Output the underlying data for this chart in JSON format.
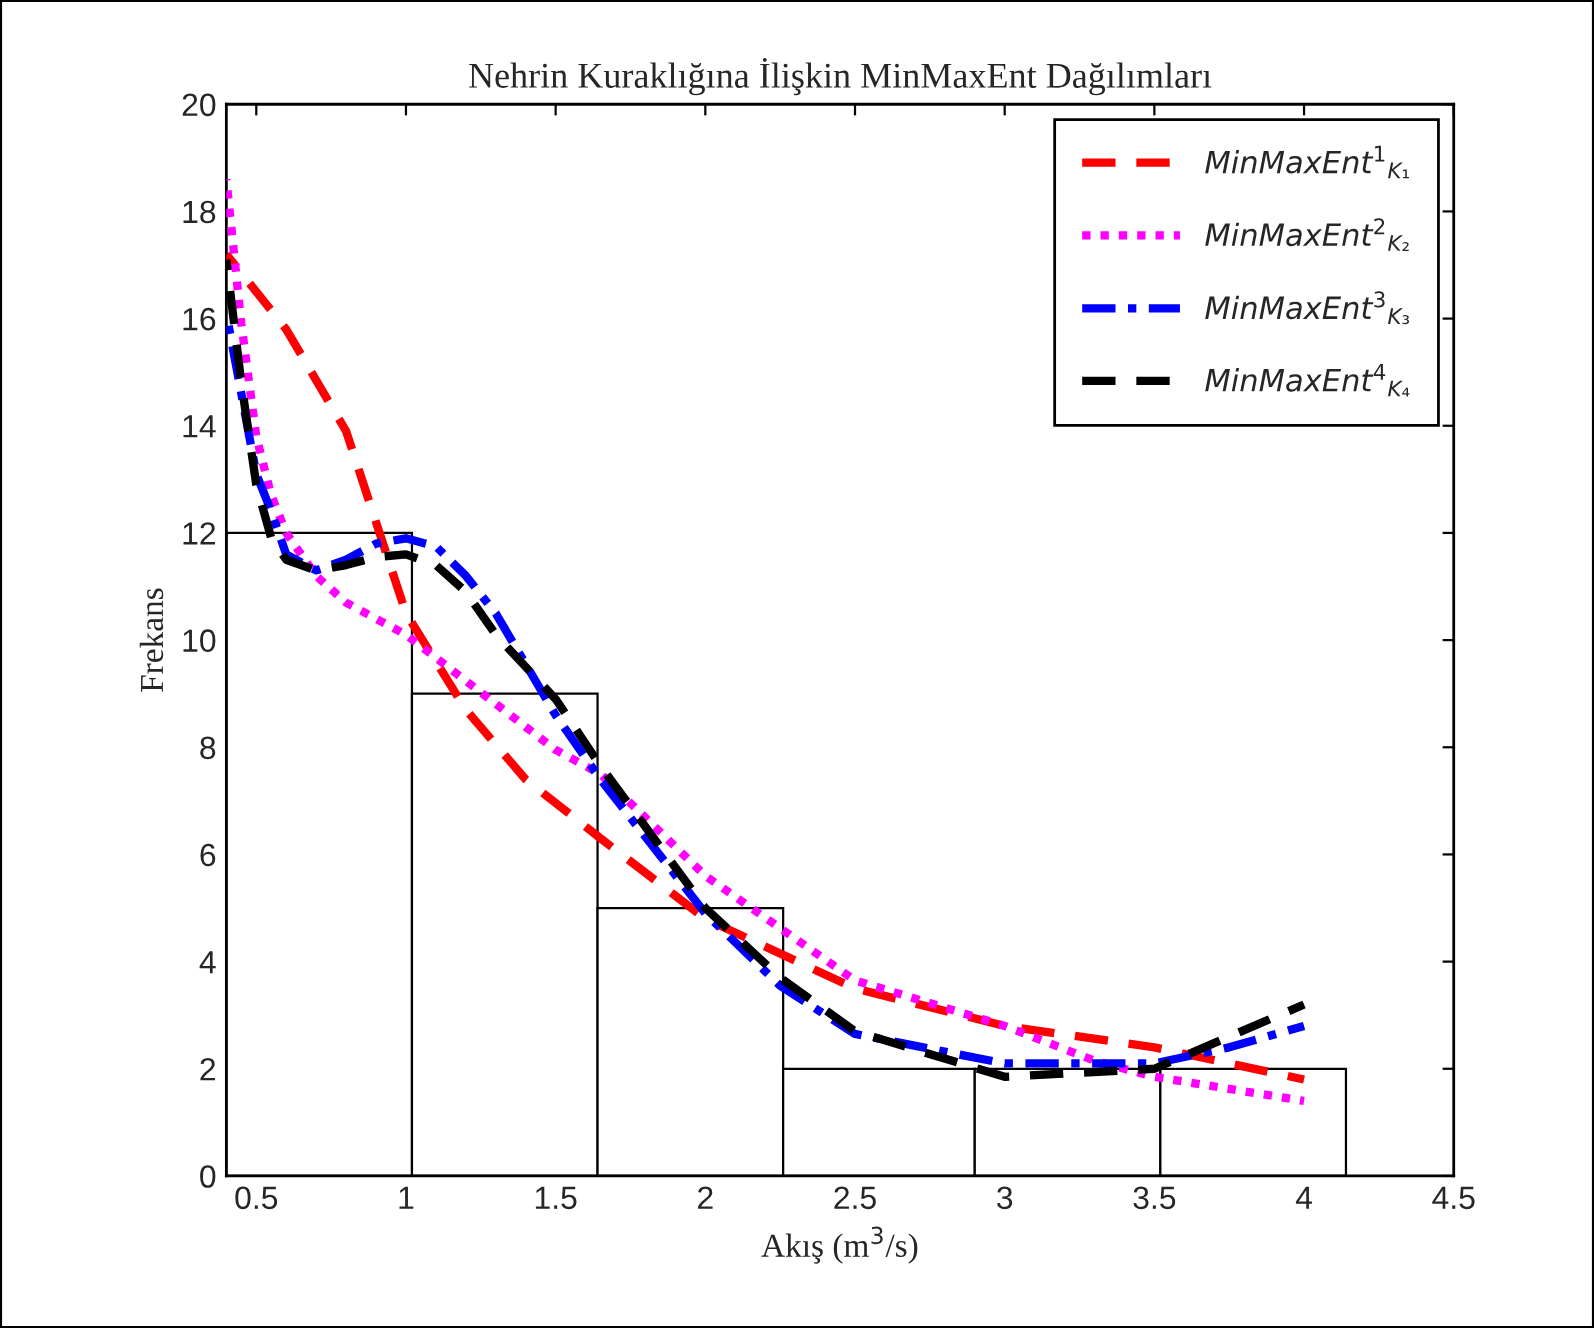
{
  "chart_data": {
    "type": "histogram",
    "title": "Nehrin Kuraklığına İlişkin MinMaxEnt Dağılımları",
    "xlabel": "Akış (m$^{3}$/s)",
    "ylabel": "Frekans",
    "bins": [
      0.4,
      1.02,
      1.64,
      2.26,
      2.9,
      3.52,
      4.14
    ],
    "values": [
      12,
      9,
      5,
      2,
      2,
      2
    ],
    "color": "#ffffff",
    "xlim": [
      0.4,
      4.5
    ],
    "xticks": [
      0.5,
      1,
      1.5,
      2,
      2.5,
      3,
      3.5,
      4,
      4.5
    ],
    "ylim": [
      0,
      20
    ],
    "yticks": [
      0,
      2,
      4,
      6,
      8,
      10,
      12,
      14,
      16,
      18,
      20
    ],
    "grid": false,
    "legend": "top right",
    "series": [
      {
        "name": "MinMaxEnt$^{1}$$_{K₁}$",
        "type": "line",
        "line_style": "dashed",
        "color": "#ff0000",
        "x": [
          0.4,
          0.6,
          0.8,
          0.9,
          1.0,
          1.2,
          1.4,
          1.65,
          2.0,
          2.5,
          3.0,
          3.5,
          4.0
        ],
        "values": [
          17.2,
          15.8,
          13.9,
          12.2,
          10.5,
          8.7,
          7.4,
          6.3,
          4.8,
          3.5,
          2.8,
          2.4,
          1.8
        ]
      },
      {
        "name": "MinMaxEnt$^{2}$$_{K₂}$",
        "type": "line",
        "line_style": "dotted",
        "color": "#ff00ff",
        "x": [
          0.4,
          0.45,
          0.5,
          0.55,
          0.6,
          0.7,
          0.8,
          1.0,
          1.5,
          1.65,
          2.0,
          2.5,
          3.0,
          3.3,
          3.5,
          4.0
        ],
        "values": [
          18.6,
          15.9,
          13.8,
          12.7,
          12.0,
          11.2,
          10.7,
          10.1,
          7.95,
          7.5,
          5.6,
          3.65,
          2.8,
          2.15,
          1.85,
          1.4
        ]
      },
      {
        "name": "MinMaxEnt$^{3}$$_{K₃}$",
        "type": "line",
        "line_style": "dashdot",
        "color": "#0000ff",
        "x": [
          0.4,
          0.45,
          0.5,
          0.55,
          0.6,
          0.7,
          0.8,
          0.9,
          1.0,
          1.1,
          1.2,
          1.3,
          1.5,
          1.65,
          2.0,
          2.25,
          2.5,
          3.0,
          3.5,
          3.75,
          4.0
        ],
        "values": [
          16.1,
          14.6,
          13.1,
          12.4,
          11.6,
          11.3,
          11.5,
          11.8,
          11.9,
          11.75,
          11.2,
          10.5,
          8.6,
          7.4,
          4.9,
          3.55,
          2.65,
          2.1,
          2.1,
          2.4,
          2.8
        ]
      },
      {
        "name": "MinMaxEnt$^{4}$$_{K₄}$",
        "type": "line",
        "line_style": "dashed",
        "color": "#000000",
        "x": [
          0.4,
          0.45,
          0.5,
          0.55,
          0.6,
          0.7,
          0.8,
          0.9,
          1.0,
          1.1,
          1.2,
          1.3,
          1.5,
          1.65,
          2.0,
          2.25,
          2.5,
          3.0,
          3.5,
          3.75,
          4.0
        ],
        "values": [
          17.1,
          14.8,
          12.9,
          11.9,
          11.5,
          11.3,
          11.4,
          11.55,
          11.6,
          11.4,
          10.9,
          10.1,
          8.9,
          7.65,
          5.0,
          3.7,
          2.7,
          1.85,
          2.0,
          2.6,
          3.2
        ]
      }
    ]
  }
}
